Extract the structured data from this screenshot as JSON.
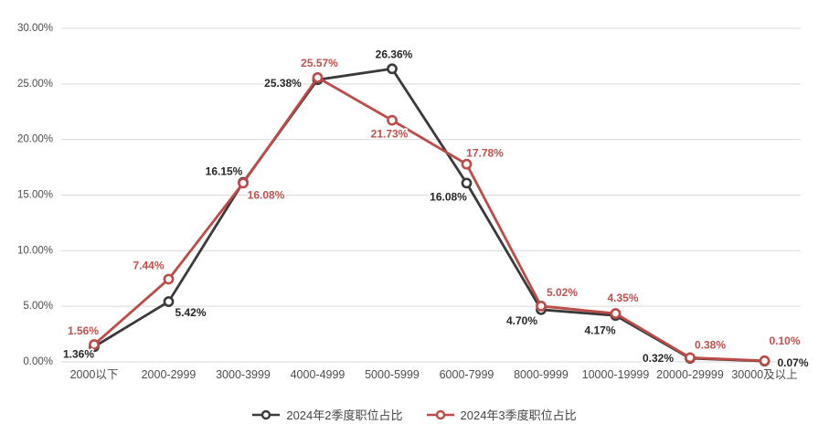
{
  "chart_data": {
    "type": "line",
    "title": "",
    "categories": [
      "2000以下",
      "2000-2999",
      "3000-3999",
      "4000-4999",
      "5000-5999",
      "6000-7999",
      "8000-9999",
      "10000-19999",
      "20000-29999",
      "30000及以上"
    ],
    "series": [
      {
        "name": "2024年2季度职位占比",
        "color": "#3a3a3a",
        "label_color": "#262626",
        "marker": "circle",
        "values": [
          1.36,
          5.42,
          16.15,
          25.38,
          26.36,
          16.08,
          4.7,
          4.17,
          0.32,
          0.07
        ],
        "point_labels": [
          "1.36%",
          "5.42%",
          "16.15%",
          "25.38%",
          "26.36%",
          "16.08%",
          "4.70%",
          "4.17%",
          "0.32%",
          "0.07%"
        ],
        "label_offsets": [
          [
            -17,
            8
          ],
          [
            24,
            12
          ],
          [
            -21,
            -12
          ],
          [
            -38,
            4
          ],
          [
            2,
            -16
          ],
          [
            -20,
            15
          ],
          [
            -21,
            12
          ],
          [
            -17,
            16
          ],
          [
            -35,
            0
          ],
          [
            31,
            2
          ]
        ]
      },
      {
        "name": "2024年3季度职位占比",
        "color": "#bd4b48",
        "label_color": "#c0504d",
        "marker": "circle",
        "values": [
          1.56,
          7.44,
          16.08,
          25.57,
          21.73,
          17.78,
          5.02,
          4.35,
          0.38,
          0.1
        ],
        "point_labels": [
          "1.56%",
          "7.44%",
          "16.08%",
          "25.57%",
          "21.73%",
          "17.78%",
          "5.02%",
          "4.35%",
          "0.38%",
          "0.10%"
        ],
        "label_offsets": [
          [
            -12,
            -15
          ],
          [
            -22,
            -15
          ],
          [
            25,
            13
          ],
          [
            2,
            -16
          ],
          [
            -3,
            15
          ],
          [
            20,
            -12
          ],
          [
            23,
            -15
          ],
          [
            8,
            -17
          ],
          [
            22,
            -14
          ],
          [
            22,
            -22
          ]
        ]
      }
    ],
    "y_axis": {
      "min": 0,
      "max": 30,
      "step": 5,
      "tick_labels": [
        "0.00%",
        "5.00%",
        "10.00%",
        "15.00%",
        "20.00%",
        "25.00%",
        "30.00%"
      ]
    },
    "grid": true,
    "legend_position": "bottom"
  },
  "styles": {
    "grid_color": "#d9d9d9",
    "axis_text_color": "#4d4d4d",
    "legend_text_color": "#444444",
    "background": "#ffffff",
    "label_halo": "#ffffff"
  }
}
